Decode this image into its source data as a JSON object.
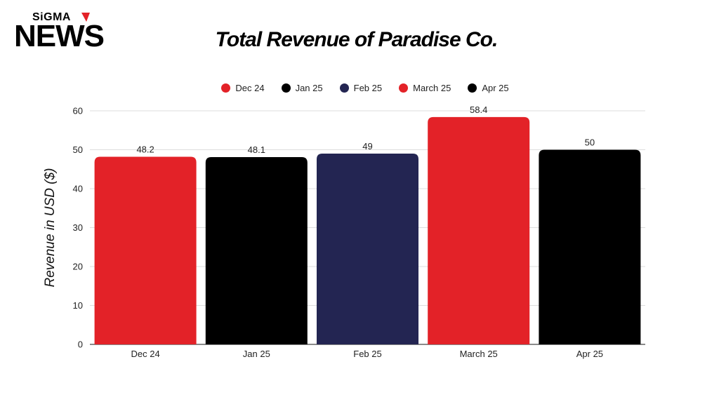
{
  "brand": {
    "top": "SiGMA",
    "main": "NEWS",
    "mark_color": "#e32228"
  },
  "chart_data": {
    "type": "bar",
    "title": "Total Revenue of Paradise Co.",
    "xlabel": "",
    "ylabel": "Revenue in USD ($)",
    "ylim": [
      0,
      60
    ],
    "yticks": [
      0,
      10,
      20,
      30,
      40,
      50,
      60
    ],
    "grid": true,
    "legend_position": "top",
    "categories": [
      "Dec 24",
      "Jan 25",
      "Feb 25",
      "March 25",
      "Apr 25"
    ],
    "values": [
      48.2,
      48.1,
      49,
      58.4,
      50
    ],
    "data_labels": [
      "48.2",
      "48.1",
      "49",
      "58.4",
      "50"
    ],
    "colors": [
      "#e32228",
      "#000000",
      "#232552",
      "#e32228",
      "#000000"
    ]
  }
}
